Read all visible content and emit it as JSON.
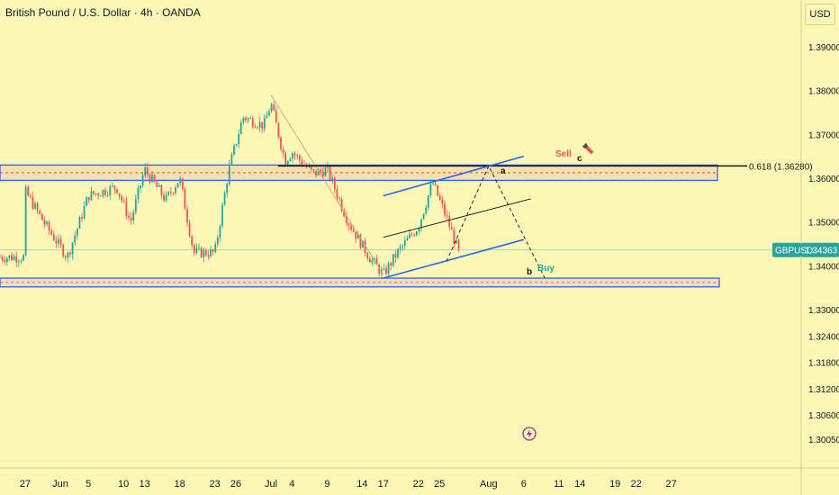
{
  "header": {
    "title": "British Pound / U.S. Dollar · 4h · OANDA",
    "currency": "USD"
  },
  "price_tag": {
    "symbol": "GBPUSD",
    "value": "1.34363",
    "price": 1.34363,
    "color": "#26a69a"
  },
  "fib_label": "0.618 (1.36280)",
  "annotations": {
    "sell": "Sell",
    "buy": "Buy",
    "a": "a",
    "b": "b",
    "c": "c"
  },
  "colors": {
    "background": "#fdf7b6",
    "up": "#26a69a",
    "down": "#ef5350",
    "zone": "#2962ff",
    "zone_fill": "#f6d7a7",
    "channel": "#2962ff"
  },
  "icons": {
    "pencil": "pencil-icon",
    "flash": "lightning-icon"
  },
  "chart_data": {
    "type": "candlestick",
    "title": "British Pound / U.S. Dollar · 4h · OANDA",
    "symbol": "GBPUSD",
    "xlabel": "",
    "ylabel": "USD",
    "ylim": [
      1.2988,
      1.3985
    ],
    "y_ticks": [
      "1.39000",
      "1.38000",
      "1.37000",
      "1.36000",
      "1.35000",
      "1.34000",
      "1.33000",
      "1.32400",
      "1.31800",
      "1.31200",
      "1.30600",
      "1.30050"
    ],
    "y_tick_values": [
      1.39,
      1.38,
      1.37,
      1.36,
      1.35,
      1.34,
      1.33,
      1.324,
      1.318,
      1.312,
      1.306,
      1.3005
    ],
    "x_ticks": [
      "27",
      "Jun",
      "5",
      "10",
      "13",
      "18",
      "23",
      "26",
      "Jul",
      "4",
      "9",
      "14",
      "17",
      "22",
      "25",
      "Aug",
      "6",
      "11",
      "14",
      "19",
      "22",
      "27"
    ],
    "x_tick_dates": [
      "2025-05-27",
      "2025-06-01",
      "2025-06-05",
      "2025-06-10",
      "2025-06-13",
      "2025-06-18",
      "2025-06-23",
      "2025-06-26",
      "2025-07-01",
      "2025-07-04",
      "2025-07-09",
      "2025-07-14",
      "2025-07-17",
      "2025-07-22",
      "2025-07-25",
      "2025-08-01",
      "2025-08-06",
      "2025-08-11",
      "2025-08-14",
      "2025-08-19",
      "2025-08-22",
      "2025-08-27"
    ],
    "price_path": [
      {
        "date": "2025-05-27",
        "price": 1.357
      },
      {
        "date": "2025-05-30",
        "price": 1.349
      },
      {
        "date": "2025-06-02",
        "price": 1.342
      },
      {
        "date": "2025-06-05",
        "price": 1.356
      },
      {
        "date": "2025-06-09",
        "price": 1.358
      },
      {
        "date": "2025-06-11",
        "price": 1.35
      },
      {
        "date": "2025-06-13",
        "price": 1.362
      },
      {
        "date": "2025-06-16",
        "price": 1.355
      },
      {
        "date": "2025-06-18",
        "price": 1.36
      },
      {
        "date": "2025-06-20",
        "price": 1.343
      },
      {
        "date": "2025-06-23",
        "price": 1.343
      },
      {
        "date": "2025-06-25",
        "price": 1.362
      },
      {
        "date": "2025-06-27",
        "price": 1.374
      },
      {
        "date": "2025-06-30",
        "price": 1.372
      },
      {
        "date": "2025-07-01",
        "price": 1.377
      },
      {
        "date": "2025-07-03",
        "price": 1.364
      },
      {
        "date": "2025-07-04",
        "price": 1.366
      },
      {
        "date": "2025-07-07",
        "price": 1.361
      },
      {
        "date": "2025-07-09",
        "price": 1.362
      },
      {
        "date": "2025-07-12",
        "price": 1.35
      },
      {
        "date": "2025-07-15",
        "price": 1.342
      },
      {
        "date": "2025-07-17",
        "price": 1.338
      },
      {
        "date": "2025-07-19",
        "price": 1.343
      },
      {
        "date": "2025-07-22",
        "price": 1.349
      },
      {
        "date": "2025-07-24",
        "price": 1.359
      },
      {
        "date": "2025-07-26",
        "price": 1.351
      },
      {
        "date": "2025-07-28",
        "price": 1.342
      }
    ],
    "last_price": 1.34363,
    "resistance_zone": [
      1.3595,
      1.363
    ],
    "support_zone": [
      1.3352,
      1.3372
    ],
    "fib_level": 1.3628,
    "channel": {
      "upper": [
        {
          "date": "2025-07-17",
          "price": 1.356
        },
        {
          "date": "2025-08-06",
          "price": 1.365
        }
      ],
      "middle": [
        {
          "date": "2025-07-17",
          "price": 1.3465
        },
        {
          "date": "2025-08-07",
          "price": 1.3553
        }
      ],
      "lower": [
        {
          "date": "2025-07-17",
          "price": 1.3372
        },
        {
          "date": "2025-08-06",
          "price": 1.346
        }
      ]
    },
    "projection": [
      {
        "date": "2025-07-26",
        "price": 1.341
      },
      {
        "date": "2025-08-01",
        "price": 1.3628
      },
      {
        "date": "2025-08-09",
        "price": 1.3372
      }
    ],
    "grid": false,
    "legend": "none"
  }
}
